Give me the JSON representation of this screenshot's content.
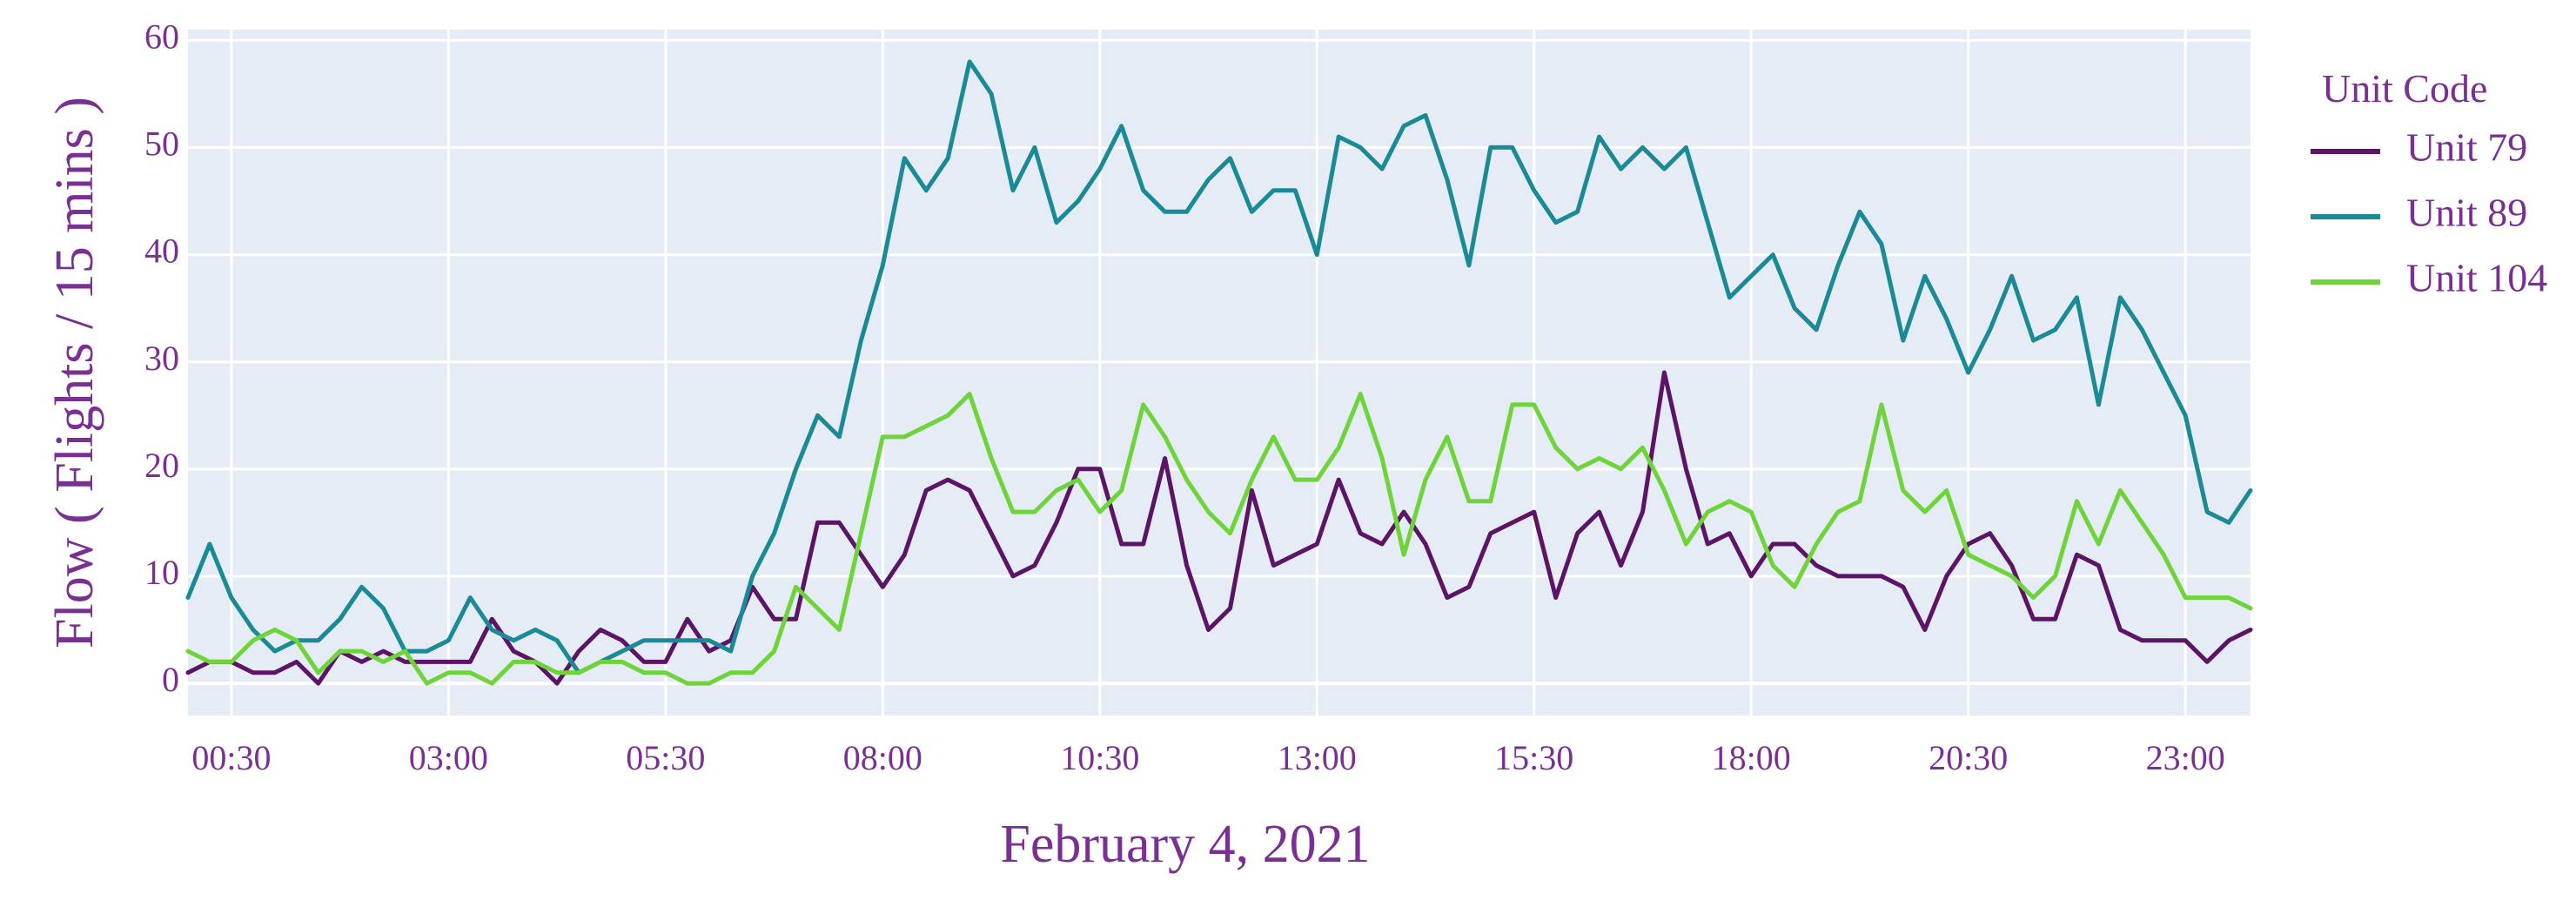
{
  "chart_data": {
    "type": "line",
    "xlabel": "February 4, 2021",
    "ylabel": "Flow ( Flights / 15 mins )",
    "ylim": [
      -3,
      61
    ],
    "grid": true,
    "legend_title": "Unit Code",
    "legend_position": "right",
    "text_color": "#7a2f93",
    "plot_background": "#e5ecf6",
    "x_tick_labels": [
      "00:30",
      "03:00",
      "05:30",
      "08:00",
      "10:30",
      "13:00",
      "15:30",
      "18:00",
      "20:30",
      "23:00"
    ],
    "x_tick_index": [
      2,
      12,
      22,
      32,
      42,
      52,
      62,
      72,
      82,
      92
    ],
    "y_ticks": [
      0,
      10,
      20,
      30,
      40,
      50,
      60
    ],
    "x_interval_minutes": 15,
    "x_start": "00:00",
    "series": [
      {
        "name": "Unit 79",
        "color": "#5b1466",
        "values": [
          1,
          2,
          2,
          1,
          1,
          2,
          0,
          3,
          2,
          3,
          2,
          2,
          2,
          2,
          6,
          3,
          2,
          0,
          3,
          5,
          4,
          2,
          2,
          6,
          3,
          4,
          9,
          6,
          6,
          15,
          15,
          12,
          9,
          12,
          18,
          19,
          18,
          14,
          10,
          11,
          15,
          20,
          20,
          13,
          13,
          21,
          11,
          5,
          7,
          18,
          11,
          12,
          13,
          19,
          14,
          13,
          16,
          13,
          8,
          9,
          14,
          15,
          16,
          8,
          14,
          16,
          11,
          16,
          29,
          20,
          13,
          14,
          10,
          13,
          13,
          11,
          10,
          10,
          10,
          9,
          5,
          10,
          13,
          14,
          11,
          6,
          6,
          12,
          11,
          5,
          4,
          4,
          4,
          2,
          4,
          5
        ]
      },
      {
        "name": "Unit 89",
        "color": "#1a8a96",
        "values": [
          8,
          13,
          8,
          5,
          3,
          4,
          4,
          6,
          9,
          7,
          3,
          3,
          4,
          8,
          5,
          4,
          5,
          4,
          1,
          2,
          3,
          4,
          4,
          4,
          4,
          3,
          10,
          14,
          20,
          25,
          23,
          32,
          39,
          49,
          46,
          49,
          58,
          55,
          46,
          50,
          43,
          45,
          48,
          52,
          46,
          44,
          44,
          47,
          49,
          44,
          46,
          46,
          40,
          51,
          50,
          48,
          52,
          53,
          47,
          39,
          50,
          50,
          46,
          43,
          44,
          51,
          48,
          50,
          48,
          50,
          43,
          36,
          38,
          40,
          35,
          33,
          39,
          44,
          41,
          32,
          38,
          34,
          29,
          33,
          38,
          32,
          33,
          36,
          26,
          36,
          33,
          29,
          25,
          16,
          15,
          18
        ]
      },
      {
        "name": "Unit 104",
        "color": "#6fd43a",
        "values": [
          3,
          2,
          2,
          4,
          5,
          4,
          1,
          3,
          3,
          2,
          3,
          0,
          1,
          1,
          0,
          2,
          2,
          1,
          1,
          2,
          2,
          1,
          1,
          0,
          0,
          1,
          1,
          3,
          9,
          7,
          5,
          14,
          23,
          23,
          24,
          25,
          27,
          21,
          16,
          16,
          18,
          19,
          16,
          18,
          26,
          23,
          19,
          16,
          14,
          19,
          23,
          19,
          19,
          22,
          27,
          21,
          12,
          19,
          23,
          17,
          17,
          26,
          26,
          22,
          20,
          21,
          20,
          22,
          18,
          13,
          16,
          17,
          16,
          11,
          9,
          13,
          16,
          17,
          26,
          18,
          16,
          18,
          12,
          11,
          10,
          8,
          10,
          17,
          13,
          18,
          15,
          12,
          8,
          8,
          8,
          7
        ]
      }
    ]
  }
}
